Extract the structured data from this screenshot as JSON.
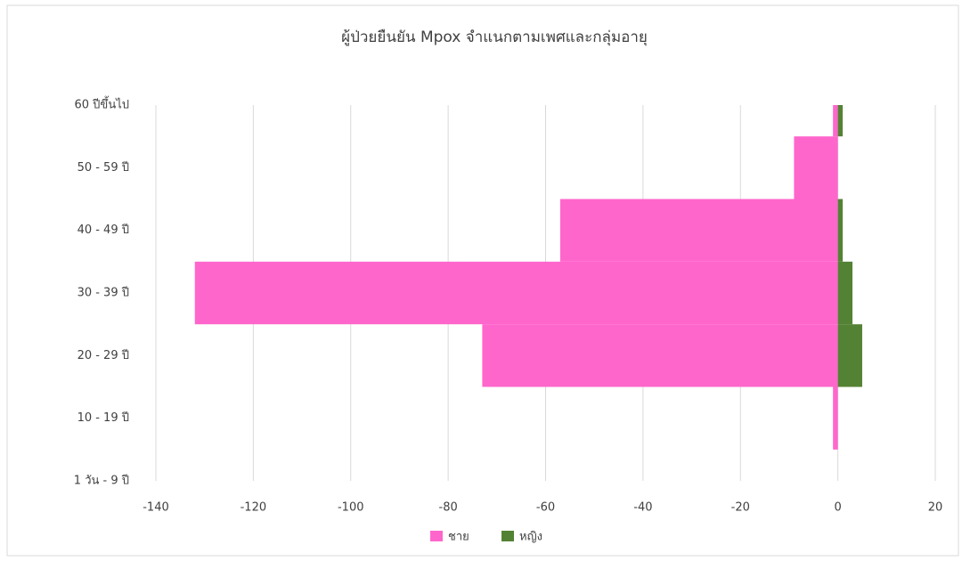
{
  "chart_data": {
    "type": "bar",
    "orientation": "horizontal",
    "title": "ผู้ป่วยยืนยัน Mpox จำแนกตามเพศและกลุ่มอายุ",
    "categories": [
      "60 ปีขึ้นไป",
      "50 - 59 ปี",
      "40 - 49 ปี",
      "30 - 39 ปี",
      "20 - 29 ปี",
      "10 - 19 ปี",
      "1 วัน - 9 ปี"
    ],
    "series": [
      {
        "name": "ชาย",
        "color": "#ff66cc",
        "values": [
          -1,
          -9,
          -57,
          -132,
          -73,
          -1,
          0
        ]
      },
      {
        "name": "หญิง",
        "color": "#548235",
        "values": [
          1,
          0,
          1,
          3,
          5,
          0,
          0
        ]
      }
    ],
    "xlim": [
      -140,
      20
    ],
    "xticks": [
      -140,
      -120,
      -100,
      -80,
      -60,
      -40,
      -20,
      0,
      20
    ],
    "grid": true,
    "legend": "bottom"
  }
}
